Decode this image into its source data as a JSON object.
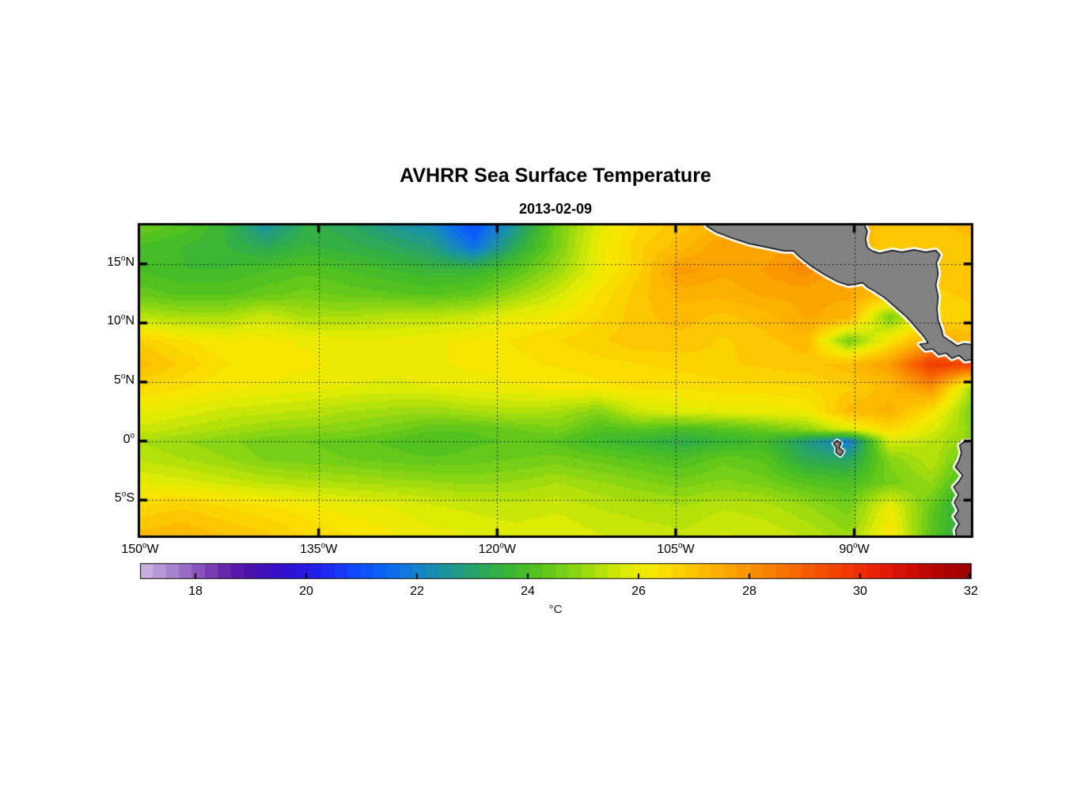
{
  "title": "AVHRR Sea Surface Temperature",
  "subtitle": "2013-02-09",
  "colorbar": {
    "label": "°C",
    "min": 17,
    "max": 32,
    "bands": 64,
    "tick_values": [
      18,
      20,
      22,
      24,
      26,
      28,
      30,
      32
    ],
    "stops": [
      [
        17.0,
        "#cdbae2"
      ],
      [
        17.4,
        "#b394d5"
      ],
      [
        17.8,
        "#9a6ec7"
      ],
      [
        18.2,
        "#7f46b5"
      ],
      [
        18.6,
        "#641fa5"
      ],
      [
        19.0,
        "#4a11ae"
      ],
      [
        19.4,
        "#3a10c4"
      ],
      [
        19.8,
        "#2c14d8"
      ],
      [
        20.2,
        "#2222e8"
      ],
      [
        20.6,
        "#1836f6"
      ],
      [
        21.0,
        "#0c50fd"
      ],
      [
        21.4,
        "#0b66f4"
      ],
      [
        21.8,
        "#1279dd"
      ],
      [
        22.2,
        "#188abc"
      ],
      [
        22.6,
        "#1f9894"
      ],
      [
        23.0,
        "#27a36b"
      ],
      [
        23.4,
        "#32ae47"
      ],
      [
        23.8,
        "#40b92c"
      ],
      [
        24.2,
        "#55c31e"
      ],
      [
        24.6,
        "#75cf17"
      ],
      [
        25.0,
        "#97d910"
      ],
      [
        25.4,
        "#bce30a"
      ],
      [
        25.8,
        "#dfeb04"
      ],
      [
        26.2,
        "#f6ea00"
      ],
      [
        26.6,
        "#fcd800"
      ],
      [
        27.0,
        "#fdc500"
      ],
      [
        27.4,
        "#fcb100"
      ],
      [
        27.8,
        "#fb9d00"
      ],
      [
        28.2,
        "#f98900"
      ],
      [
        28.6,
        "#f87400"
      ],
      [
        29.0,
        "#f66000"
      ],
      [
        29.4,
        "#f44c00"
      ],
      [
        29.8,
        "#f13800"
      ],
      [
        30.2,
        "#ec2405"
      ],
      [
        30.6,
        "#db1607"
      ],
      [
        31.0,
        "#c90b05"
      ],
      [
        31.4,
        "#b40402"
      ],
      [
        31.8,
        "#a30000"
      ],
      [
        32.0,
        "#9a0000"
      ]
    ]
  },
  "axes": {
    "x_ticks": [
      {
        "lon": -150,
        "value": "150",
        "hemi": "W"
      },
      {
        "lon": -135,
        "value": "135",
        "hemi": "W"
      },
      {
        "lon": -120,
        "value": "120",
        "hemi": "W"
      },
      {
        "lon": -105,
        "value": "105",
        "hemi": "W"
      },
      {
        "lon": -90,
        "value": "90",
        "hemi": "W"
      }
    ],
    "y_ticks": [
      {
        "lat": 15,
        "value": "15",
        "hemi": "N"
      },
      {
        "lat": 10,
        "value": "10",
        "hemi": "N"
      },
      {
        "lat": 5,
        "value": "5",
        "hemi": "N"
      },
      {
        "lat": 0,
        "value": "0",
        "hemi": ""
      },
      {
        "lat": -5,
        "value": "5",
        "hemi": "S"
      }
    ],
    "grid_lons": [
      -135,
      -120,
      -105,
      -90
    ],
    "grid_lats": [
      15,
      10,
      5,
      0,
      -5
    ]
  },
  "chart_data": {
    "type": "heatmap",
    "unit": "°C",
    "lon_range": [
      -150,
      -80.2
    ],
    "lat_range": [
      18.26,
      -8.0
    ],
    "lons": [
      -150,
      -146.5,
      -143,
      -139.5,
      -136,
      -132.5,
      -129,
      -125.5,
      -122,
      -118.5,
      -115,
      -111.5,
      -108,
      -104.5,
      -101,
      -97.5,
      -94,
      -90.5,
      -87,
      -83.5,
      -80
    ],
    "lats": [
      18.26,
      16.5,
      14.5,
      12.5,
      10.5,
      8.5,
      6.5,
      4.5,
      2.5,
      1.0,
      0.0,
      -1.5,
      -3.5,
      -5.5,
      -8.0
    ],
    "sst": [
      [
        24.5,
        24.2,
        23.6,
        22.4,
        23.4,
        23.2,
        22.6,
        22.2,
        20.9,
        22.6,
        24.6,
        25.8,
        26.6,
        27.0,
        27.3,
        27.3,
        27.2,
        27.2,
        27.0,
        27.0,
        27.2
      ],
      [
        24.0,
        23.8,
        23.6,
        23.2,
        23.6,
        23.4,
        23.2,
        22.8,
        21.6,
        23.2,
        24.6,
        26.0,
        26.8,
        27.2,
        27.8,
        27.6,
        28.0,
        27.2,
        27.0,
        26.9,
        27.0
      ],
      [
        24.0,
        23.8,
        23.8,
        24.0,
        24.2,
        24.0,
        23.8,
        23.6,
        23.6,
        24.2,
        25.0,
        26.0,
        26.8,
        27.9,
        27.6,
        27.8,
        28.2,
        27.3,
        27.0,
        26.9,
        27.0
      ],
      [
        24.4,
        24.2,
        24.2,
        24.4,
        24.6,
        24.4,
        24.3,
        24.2,
        24.4,
        25.0,
        25.6,
        26.4,
        27.0,
        27.4,
        27.4,
        27.6,
        27.6,
        27.6,
        27.2,
        26.8,
        26.9
      ],
      [
        25.4,
        25.2,
        25.2,
        25.6,
        25.2,
        25.2,
        25.4,
        25.4,
        25.6,
        26.0,
        26.2,
        26.6,
        27.0,
        27.2,
        27.0,
        27.2,
        27.6,
        27.4,
        24.6,
        26.6,
        26.8
      ],
      [
        26.8,
        26.4,
        26.2,
        26.2,
        26.1,
        26.0,
        26.0,
        26.1,
        26.2,
        26.4,
        26.6,
        26.8,
        27.0,
        27.0,
        26.8,
        27.0,
        27.2,
        24.6,
        26.3,
        27.6,
        27.2
      ],
      [
        27.2,
        26.8,
        26.4,
        26.3,
        26.2,
        26.1,
        26.0,
        26.1,
        26.2,
        26.3,
        26.4,
        26.5,
        26.6,
        26.7,
        26.8,
        26.9,
        27.0,
        27.2,
        27.8,
        29.8,
        29.6
      ],
      [
        26.6,
        26.4,
        26.2,
        26.1,
        26.0,
        25.9,
        25.8,
        25.9,
        26.0,
        26.1,
        26.2,
        26.3,
        26.4,
        26.4,
        26.5,
        26.5,
        26.6,
        26.8,
        27.2,
        28.0,
        25.0
      ],
      [
        26.0,
        25.8,
        25.6,
        25.5,
        25.4,
        25.2,
        25.1,
        25.0,
        25.2,
        25.3,
        25.2,
        24.8,
        25.6,
        25.8,
        25.9,
        26.0,
        26.1,
        27.2,
        27.4,
        26.4,
        24.6
      ],
      [
        25.6,
        25.4,
        25.2,
        25.0,
        24.9,
        24.8,
        24.6,
        24.3,
        24.3,
        24.5,
        24.7,
        24.1,
        24.3,
        24.0,
        24.2,
        24.5,
        24.9,
        25.8,
        26.6,
        25.8,
        24.8
      ],
      [
        25.2,
        25.0,
        24.8,
        24.6,
        24.5,
        24.4,
        24.2,
        24.0,
        24.2,
        24.3,
        24.2,
        23.8,
        23.6,
        23.3,
        23.6,
        23.8,
        22.8,
        21.8,
        25.8,
        25.4,
        24.8
      ],
      [
        25.4,
        25.2,
        25.0,
        24.7,
        24.6,
        24.5,
        24.4,
        24.3,
        24.4,
        24.5,
        24.6,
        24.4,
        24.2,
        24.0,
        24.4,
        24.2,
        23.2,
        23.0,
        24.8,
        25.4,
        24.2
      ],
      [
        25.9,
        25.8,
        25.6,
        25.4,
        25.3,
        25.2,
        25.1,
        25.0,
        24.9,
        25.0,
        25.2,
        25.0,
        24.8,
        24.6,
        24.8,
        24.6,
        24.2,
        24.0,
        24.6,
        25.0,
        23.6
      ],
      [
        26.6,
        26.8,
        26.6,
        26.4,
        26.2,
        26.0,
        25.9,
        25.7,
        25.6,
        25.5,
        25.6,
        25.4,
        25.3,
        25.2,
        25.4,
        25.3,
        25.0,
        24.6,
        26.0,
        24.4,
        22.8
      ],
      [
        27.2,
        27.3,
        27.1,
        26.9,
        26.6,
        26.4,
        26.2,
        26.0,
        25.9,
        25.8,
        25.9,
        25.7,
        25.6,
        25.5,
        25.7,
        25.6,
        25.4,
        25.0,
        26.4,
        24.2,
        23.0
      ]
    ],
    "land": {
      "fill": "#828282",
      "outline": "#000000",
      "coast_halo": "#ffffff",
      "polygons": {
        "central_america": [
          [
            -102.4,
            19.0
          ],
          [
            -102.4,
            18.2
          ],
          [
            -101.6,
            17.7
          ],
          [
            -100.3,
            17.2
          ],
          [
            -98.8,
            16.7
          ],
          [
            -97.3,
            16.4
          ],
          [
            -95.9,
            16.1
          ],
          [
            -95.1,
            16.1
          ],
          [
            -94.6,
            15.6
          ],
          [
            -93.6,
            14.8
          ],
          [
            -92.5,
            14.1
          ],
          [
            -91.4,
            13.5
          ],
          [
            -90.5,
            13.2
          ],
          [
            -89.8,
            13.3
          ],
          [
            -89.3,
            13.4
          ],
          [
            -88.9,
            13.05
          ],
          [
            -88.3,
            12.7
          ],
          [
            -87.4,
            12.1
          ],
          [
            -86.5,
            11.3
          ],
          [
            -85.6,
            10.5
          ],
          [
            -84.8,
            9.6
          ],
          [
            -84.15,
            8.85
          ],
          [
            -83.8,
            8.3
          ],
          [
            -84.5,
            8.2
          ],
          [
            -84.0,
            7.7
          ],
          [
            -83.4,
            7.8
          ],
          [
            -82.9,
            7.3
          ],
          [
            -82.3,
            7.45
          ],
          [
            -81.8,
            7.0
          ],
          [
            -81.2,
            7.25
          ],
          [
            -80.7,
            6.8
          ],
          [
            -79.5,
            7.0
          ],
          [
            -79.5,
            8.1
          ],
          [
            -80.8,
            8.25
          ],
          [
            -81.35,
            8.05
          ],
          [
            -82.0,
            8.5
          ],
          [
            -82.55,
            8.9
          ],
          [
            -82.65,
            9.4
          ],
          [
            -82.95,
            10.2
          ],
          [
            -83.05,
            11.2
          ],
          [
            -82.95,
            12.2
          ],
          [
            -83.15,
            13.2
          ],
          [
            -82.95,
            14.2
          ],
          [
            -83.1,
            15.1
          ],
          [
            -82.8,
            15.75
          ],
          [
            -83.15,
            16.15
          ],
          [
            -84.0,
            16.0
          ],
          [
            -85.0,
            16.2
          ],
          [
            -86.0,
            16.0
          ],
          [
            -86.8,
            16.15
          ],
          [
            -87.85,
            15.9
          ],
          [
            -88.5,
            16.1
          ],
          [
            -88.9,
            16.4
          ],
          [
            -89.05,
            17.1
          ],
          [
            -88.9,
            17.75
          ],
          [
            -89.1,
            18.2
          ],
          [
            -89.1,
            19.0
          ]
        ],
        "south_america": [
          [
            -79.5,
            -0.05
          ],
          [
            -80.75,
            -0.05
          ],
          [
            -81.15,
            -0.35
          ],
          [
            -81.0,
            -1.0
          ],
          [
            -81.2,
            -1.65
          ],
          [
            -81.5,
            -2.2
          ],
          [
            -80.9,
            -2.9
          ],
          [
            -81.2,
            -3.4
          ],
          [
            -81.65,
            -3.9
          ],
          [
            -81.25,
            -4.55
          ],
          [
            -81.6,
            -5.2
          ],
          [
            -81.25,
            -5.9
          ],
          [
            -81.6,
            -6.4
          ],
          [
            -81.2,
            -7.0
          ],
          [
            -81.5,
            -7.55
          ],
          [
            -81.35,
            -8.6
          ],
          [
            -79.5,
            -8.6
          ]
        ],
        "galapagos": [
          [
            -91.45,
            0.05
          ],
          [
            -91.1,
            -0.2
          ],
          [
            -91.3,
            -0.55
          ],
          [
            -90.9,
            -0.85
          ],
          [
            -91.15,
            -1.25
          ],
          [
            -91.55,
            -0.95
          ],
          [
            -91.5,
            -0.55
          ],
          [
            -91.75,
            -0.2
          ]
        ]
      }
    }
  }
}
